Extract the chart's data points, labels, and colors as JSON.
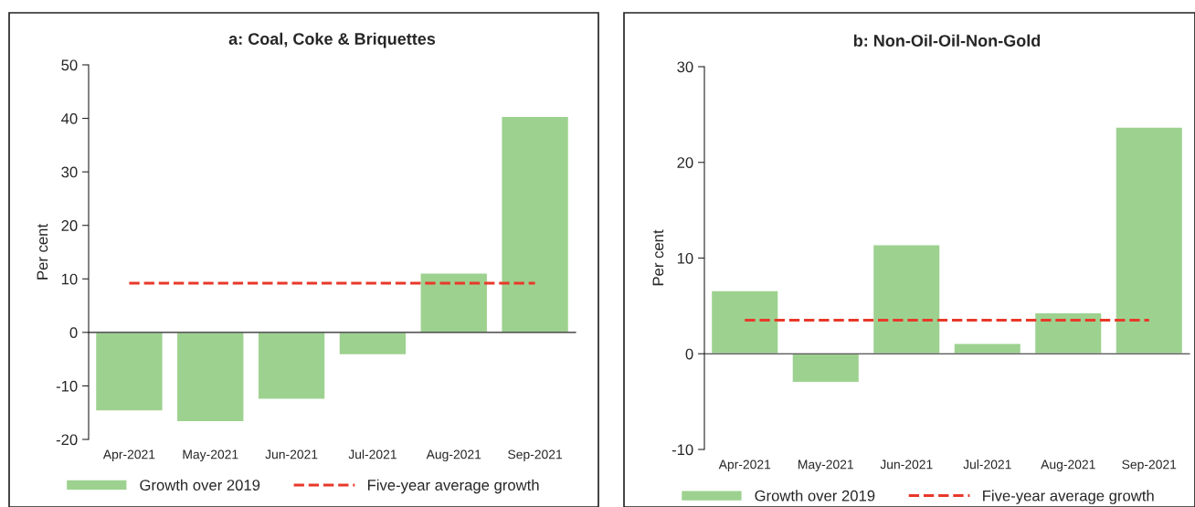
{
  "chart_data": [
    {
      "type": "bar",
      "title": "a: Coal, Coke & Briquettes",
      "ylabel": "Per cent",
      "categories": [
        "Apr-2021",
        "May-2021",
        "Jun-2021",
        "Jul-2021",
        "Aug-2021",
        "Sep-2021"
      ],
      "series": [
        {
          "name": "Growth over 2019",
          "color": "#9dd18f",
          "values": [
            -14.7,
            -16.7,
            -12.5,
            -4.2,
            11.1,
            40.4
          ]
        },
        {
          "name": "Five-year average growth",
          "type": "line",
          "color": "#e8382a",
          "line_style": "dashed",
          "values": [
            9.2,
            9.2,
            9.2,
            9.2,
            9.2,
            9.2
          ]
        }
      ],
      "ylim": [
        -20,
        50
      ],
      "yticks": [
        -20,
        -10,
        0,
        10,
        20,
        30,
        40,
        50
      ],
      "legend": "bottom"
    },
    {
      "type": "bar",
      "title": "b: Non-Oil-Oil-Non-Gold",
      "ylabel": "Per cent",
      "categories": [
        "Apr-2021",
        "May-2021",
        "Jun-2021",
        "Jul-2021",
        "Aug-2021",
        "Sep-2021"
      ],
      "series": [
        {
          "name": "Growth over 2019",
          "color": "#9dd18f",
          "values": [
            6.6,
            -3.0,
            11.4,
            1.1,
            4.3,
            23.7
          ]
        },
        {
          "name": "Five-year average growth",
          "type": "line",
          "color": "#e8382a",
          "line_style": "dashed",
          "values": [
            3.5,
            3.5,
            3.5,
            3.5,
            3.5,
            3.5
          ]
        }
      ],
      "ylim": [
        -10,
        30
      ],
      "yticks": [
        -10,
        0,
        10,
        20,
        30
      ],
      "legend": "bottom"
    }
  ]
}
